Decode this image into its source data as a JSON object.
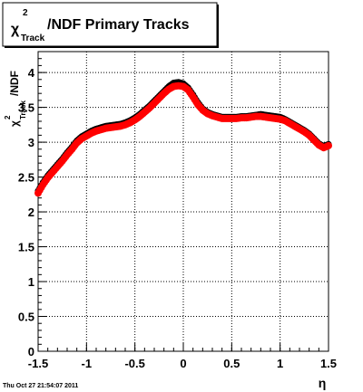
{
  "chart_data": {
    "type": "scatter",
    "title": {
      "chi": "χ",
      "superscript": "2",
      "subscript": "Track",
      "rest": "/NDF  Primary Tracks"
    },
    "xlabel": "η",
    "ylabel": {
      "chi": "χ",
      "superscript": "2",
      "subscript": "Track",
      "rest": "/NDF"
    },
    "xlim": [
      -1.5,
      1.5
    ],
    "ylim": [
      0,
      4.3
    ],
    "x_ticks": [
      "-1.5",
      "-1",
      "-0.5",
      "0",
      "0.5",
      "1",
      "1.5"
    ],
    "y_ticks": [
      "0",
      "0.5",
      "1",
      "1.5",
      "2",
      "2.5",
      "3",
      "3.5",
      "4"
    ],
    "grid": true,
    "legend": "none",
    "timestamp": "Thu Oct 27 21:54:07 2011",
    "series": [
      {
        "color": "#000000",
        "x": [
          -1.5,
          -1.45,
          -1.4,
          -1.35,
          -1.3,
          -1.25,
          -1.2,
          -1.15,
          -1.1,
          -1.05,
          -1.0,
          -0.95,
          -0.9,
          -0.85,
          -0.8,
          -0.75,
          -0.7,
          -0.65,
          -0.6,
          -0.55,
          -0.5,
          -0.45,
          -0.4,
          -0.35,
          -0.3,
          -0.25,
          -0.2,
          -0.15,
          -0.1,
          -0.05,
          0.0,
          0.05,
          0.1,
          0.15,
          0.2,
          0.25,
          0.3,
          0.35,
          0.4,
          0.45,
          0.5,
          0.55,
          0.6,
          0.65,
          0.7,
          0.75,
          0.8,
          0.85,
          0.9,
          0.95,
          1.0,
          1.05,
          1.1,
          1.15,
          1.2,
          1.25,
          1.3,
          1.35,
          1.4,
          1.45,
          1.5
        ],
        "y": [
          2.3,
          2.42,
          2.52,
          2.6,
          2.68,
          2.76,
          2.85,
          2.93,
          3.02,
          3.08,
          3.12,
          3.16,
          3.19,
          3.21,
          3.23,
          3.24,
          3.25,
          3.26,
          3.28,
          3.31,
          3.35,
          3.4,
          3.46,
          3.52,
          3.59,
          3.66,
          3.73,
          3.8,
          3.85,
          3.86,
          3.84,
          3.78,
          3.68,
          3.57,
          3.48,
          3.43,
          3.4,
          3.38,
          3.36,
          3.36,
          3.36,
          3.36,
          3.37,
          3.37,
          3.38,
          3.39,
          3.4,
          3.39,
          3.38,
          3.37,
          3.36,
          3.33,
          3.29,
          3.25,
          3.21,
          3.17,
          3.12,
          3.05,
          2.98,
          2.94,
          2.97
        ]
      },
      {
        "color": "#ff0000",
        "x": [
          -1.5,
          -1.45,
          -1.4,
          -1.35,
          -1.3,
          -1.25,
          -1.2,
          -1.15,
          -1.1,
          -1.05,
          -1.0,
          -0.95,
          -0.9,
          -0.85,
          -0.8,
          -0.75,
          -0.7,
          -0.65,
          -0.6,
          -0.55,
          -0.5,
          -0.45,
          -0.4,
          -0.35,
          -0.3,
          -0.25,
          -0.2,
          -0.15,
          -0.1,
          -0.05,
          0.0,
          0.05,
          0.1,
          0.15,
          0.2,
          0.25,
          0.3,
          0.35,
          0.4,
          0.45,
          0.5,
          0.55,
          0.6,
          0.65,
          0.7,
          0.75,
          0.8,
          0.85,
          0.9,
          0.95,
          1.0,
          1.05,
          1.1,
          1.15,
          1.2,
          1.25,
          1.3,
          1.35,
          1.4,
          1.45,
          1.5
        ],
        "y": [
          2.27,
          2.39,
          2.49,
          2.57,
          2.65,
          2.73,
          2.82,
          2.9,
          2.99,
          3.05,
          3.09,
          3.13,
          3.16,
          3.18,
          3.2,
          3.21,
          3.22,
          3.23,
          3.25,
          3.28,
          3.32,
          3.37,
          3.43,
          3.49,
          3.56,
          3.63,
          3.7,
          3.76,
          3.8,
          3.81,
          3.8,
          3.75,
          3.65,
          3.54,
          3.46,
          3.41,
          3.38,
          3.36,
          3.34,
          3.34,
          3.34,
          3.34,
          3.35,
          3.35,
          3.36,
          3.37,
          3.37,
          3.36,
          3.35,
          3.34,
          3.33,
          3.31,
          3.27,
          3.23,
          3.19,
          3.15,
          3.1,
          3.03,
          2.96,
          2.92,
          2.95
        ]
      }
    ]
  }
}
